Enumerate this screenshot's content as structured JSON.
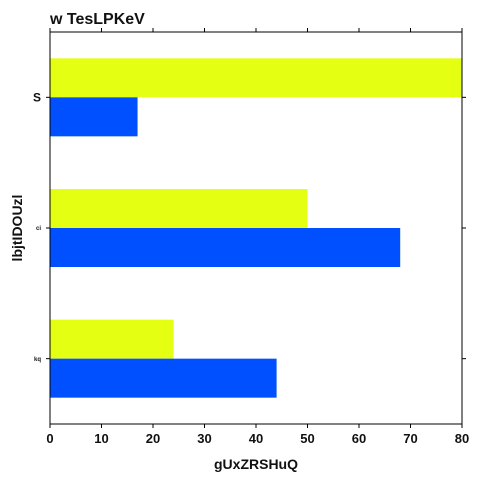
{
  "chart_data": {
    "type": "bar",
    "orientation": "horizontal",
    "title": "w TesLPKeV",
    "xlabel": "gUxZRSHuQ",
    "ylabel": "lbjtIDOUzl",
    "categories": [
      "S",
      "ci",
      "kq"
    ],
    "series": [
      {
        "values": [
          80,
          50,
          24
        ],
        "color": "#e5ff12"
      },
      {
        "values": [
          17,
          68,
          44
        ],
        "color": "#0050ff"
      }
    ],
    "xlim": [
      0,
      80
    ],
    "xticks": [
      0,
      10,
      20,
      30,
      40,
      50,
      60,
      70,
      80
    ],
    "grid": false,
    "legend": "none"
  }
}
